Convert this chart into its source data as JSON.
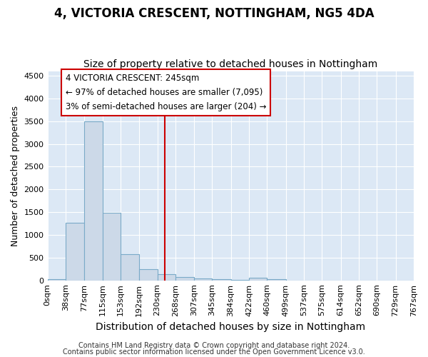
{
  "title1": "4, VICTORIA CRESCENT, NOTTINGHAM, NG5 4DA",
  "title2": "Size of property relative to detached houses in Nottingham",
  "xlabel": "Distribution of detached houses by size in Nottingham",
  "ylabel": "Number of detached properties",
  "bar_edges": [
    0,
    38,
    77,
    115,
    153,
    192,
    230,
    268,
    307,
    345,
    384,
    422,
    460,
    499,
    537,
    575,
    614,
    652,
    690,
    729,
    767
  ],
  "bar_heights": [
    30,
    1270,
    3500,
    1480,
    575,
    245,
    130,
    80,
    40,
    20,
    10,
    50,
    25,
    0,
    0,
    0,
    0,
    0,
    0,
    0
  ],
  "bar_color": "#ccd9e8",
  "bar_edgecolor": "#7aaac8",
  "property_size": 245,
  "vline_color": "#cc0000",
  "annotation_text1": "4 VICTORIA CRESCENT: 245sqm",
  "annotation_text2": "← 97% of detached houses are smaller (7,095)",
  "annotation_text3": "3% of semi-detached houses are larger (204) →",
  "ylim": [
    0,
    4600
  ],
  "yticks": [
    0,
    500,
    1000,
    1500,
    2000,
    2500,
    3000,
    3500,
    4000,
    4500
  ],
  "footer1": "Contains HM Land Registry data © Crown copyright and database right 2024.",
  "footer2": "Contains public sector information licensed under the Open Government Licence v3.0.",
  "bg_color": "#ffffff",
  "plot_bg_color": "#dce8f5",
  "grid_color": "#ffffff",
  "title1_fontsize": 12,
  "title2_fontsize": 10,
  "xlabel_fontsize": 10,
  "ylabel_fontsize": 9,
  "tick_fontsize": 8,
  "footer_fontsize": 7
}
